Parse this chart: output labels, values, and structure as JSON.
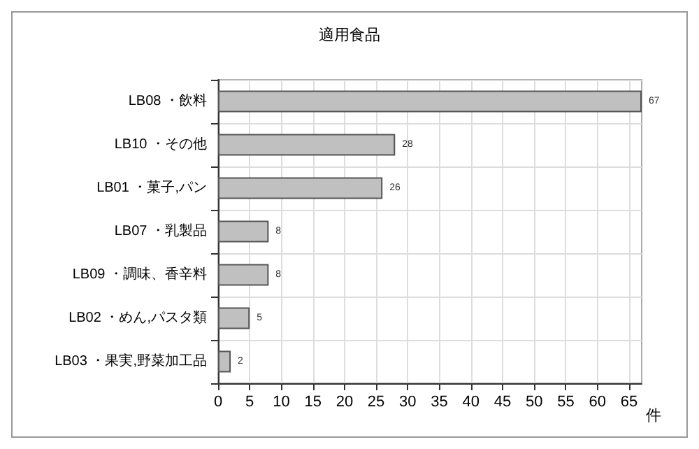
{
  "chart_data": {
    "type": "bar",
    "orientation": "horizontal",
    "title": "適用食品",
    "xlabel": "件",
    "categories": [
      "LB08 ・飲料",
      "LB10 ・その他",
      "LB01 ・菓子,パン",
      "LB07 ・乳製品",
      "LB09 ・調味、香辛料",
      "LB02 ・めん,パスタ類",
      "LB03 ・果実,野菜加工品"
    ],
    "values": [
      67,
      28,
      26,
      8,
      8,
      5,
      2
    ],
    "color": "#c0c0c0",
    "data_labels": true,
    "xlim": [
      0,
      67
    ],
    "xticks": [
      0,
      5,
      10,
      15,
      20,
      25,
      30,
      35,
      40,
      45,
      50,
      55,
      60,
      65
    ],
    "grid": true
  }
}
